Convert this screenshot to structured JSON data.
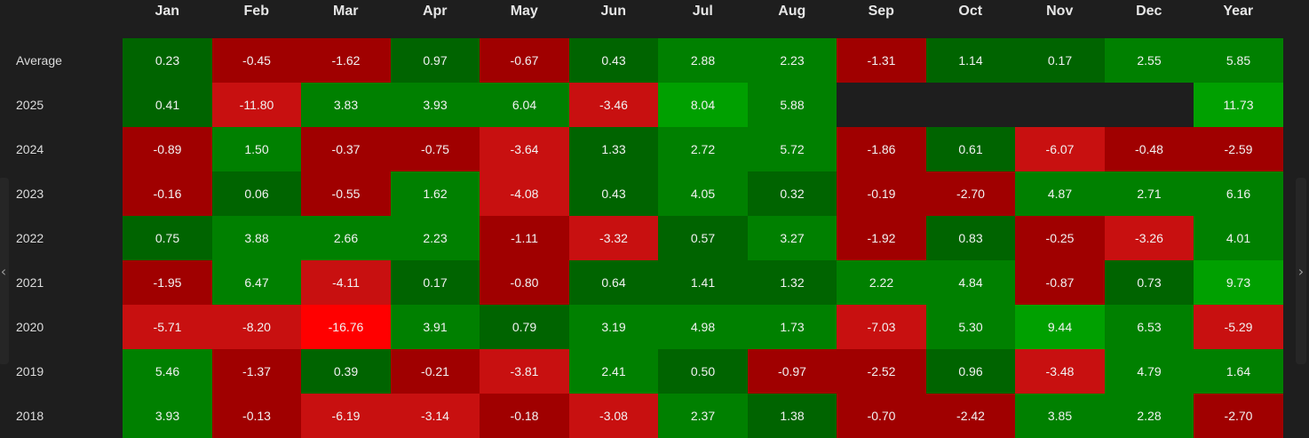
{
  "chart_data": {
    "type": "heatmap",
    "columns": [
      "Jan",
      "Feb",
      "Mar",
      "Apr",
      "May",
      "Jun",
      "Jul",
      "Aug",
      "Sep",
      "Oct",
      "Nov",
      "Dec",
      "Year"
    ],
    "rows": [
      {
        "label": "Average",
        "values": [
          0.23,
          -0.45,
          -1.62,
          0.97,
          -0.67,
          0.43,
          2.88,
          2.23,
          -1.31,
          1.14,
          0.17,
          2.55,
          5.85
        ]
      },
      {
        "label": "2025",
        "values": [
          0.41,
          -11.8,
          3.83,
          3.93,
          6.04,
          -3.46,
          8.04,
          5.88,
          null,
          null,
          null,
          null,
          11.73
        ]
      },
      {
        "label": "2024",
        "values": [
          -0.89,
          1.5,
          -0.37,
          -0.75,
          -3.64,
          1.33,
          2.72,
          5.72,
          -1.86,
          0.61,
          -6.07,
          -0.48,
          -2.59
        ]
      },
      {
        "label": "2023",
        "values": [
          -0.16,
          0.06,
          -0.55,
          1.62,
          -4.08,
          0.43,
          4.05,
          0.32,
          -0.19,
          -2.7,
          4.87,
          2.71,
          6.16
        ]
      },
      {
        "label": "2022",
        "values": [
          0.75,
          3.88,
          2.66,
          2.23,
          -1.11,
          -3.32,
          0.57,
          3.27,
          -1.92,
          0.83,
          -0.25,
          -3.26,
          4.01
        ]
      },
      {
        "label": "2021",
        "values": [
          -1.95,
          6.47,
          -4.11,
          0.17,
          -0.8,
          0.64,
          1.41,
          1.32,
          2.22,
          4.84,
          -0.87,
          0.73,
          9.73
        ]
      },
      {
        "label": "2020",
        "values": [
          -5.71,
          -8.2,
          -16.76,
          3.91,
          0.79,
          3.19,
          4.98,
          1.73,
          -7.03,
          5.3,
          9.44,
          6.53,
          -5.29
        ]
      },
      {
        "label": "2019",
        "values": [
          5.46,
          -1.37,
          0.39,
          -0.21,
          -3.81,
          2.41,
          0.5,
          -0.97,
          -2.52,
          0.96,
          -3.48,
          4.79,
          1.64
        ]
      },
      {
        "label": "2018",
        "values": [
          3.93,
          -0.13,
          -6.19,
          -3.14,
          -0.18,
          -3.08,
          2.37,
          1.38,
          -0.7,
          -2.42,
          3.85,
          2.28,
          -2.7
        ]
      }
    ],
    "value_format": "2 decimals",
    "colors": {
      "positive_dark": "#006400",
      "positive_mid": "#008000",
      "positive_bright": "#00a000",
      "negative_dark": "#a00000",
      "negative_mid": "#c81010",
      "negative_bright": "#ff0000",
      "empty": "#1e1e1e"
    }
  },
  "nav": {
    "left_icon": "chevron-left-icon",
    "right_icon": "chevron-right-icon",
    "left_glyph": "‹",
    "right_glyph": "›"
  }
}
